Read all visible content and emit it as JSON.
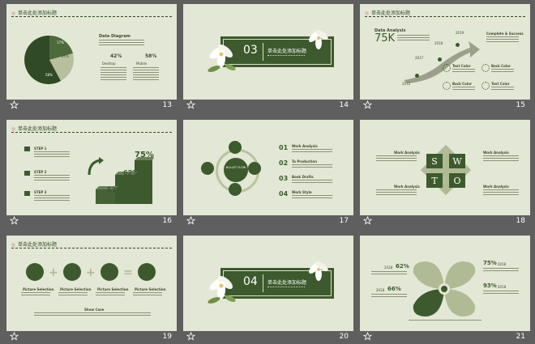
{
  "header_text": "单击此处添加标题",
  "slides": [
    {
      "number": "13",
      "title": "Data Diagram",
      "stat1": "42%",
      "stat1_label": "Desktop",
      "stat2": "58%",
      "stat2_label": "Mobile",
      "pie_labels": [
        "17%",
        "25%",
        "58%"
      ]
    },
    {
      "number": "14",
      "section_number": "03",
      "section_title": "单击此处添加标题"
    },
    {
      "number": "15",
      "title": "Data Analysis",
      "big_value": "75K",
      "years": [
        "2012",
        "2017",
        "2018",
        "2019"
      ],
      "headline": "Complete & Success",
      "items": [
        "Text Color",
        "Back Color",
        "Back Color",
        "Text Color"
      ]
    },
    {
      "number": "16",
      "steps": [
        "STEP 1",
        "STEP 2",
        "STEP 3"
      ],
      "percents": [
        "75%",
        "62%",
        "53%"
      ]
    },
    {
      "number": "17",
      "center_label": "BULLET FLOW",
      "items": [
        {
          "n": "01",
          "title": "Work Analysis"
        },
        {
          "n": "02",
          "title": "To Production"
        },
        {
          "n": "03",
          "title": "Book Drafts"
        },
        {
          "n": "04",
          "title": "Work Style"
        }
      ]
    },
    {
      "number": "18",
      "letters": [
        "S",
        "W",
        "T",
        "O"
      ],
      "labels": [
        "Work Analysis",
        "Work Analysis",
        "Work Analysis",
        "Work Analysis"
      ]
    },
    {
      "number": "19",
      "labels": [
        "Picture Selection",
        "Picture Selection",
        "Picture Selection",
        "Picture Selection"
      ],
      "footer": "Show Case"
    },
    {
      "number": "20",
      "section_number": "04",
      "section_title": "单击此处添加标题"
    },
    {
      "number": "21",
      "percents": [
        "62%",
        "75%",
        "66%",
        "93%"
      ],
      "prefix": "2018"
    }
  ],
  "colors": {
    "slide_bg": "#e3e7d5",
    "accent": "#3c5a2d",
    "window_bg": "#5f5f5f"
  }
}
